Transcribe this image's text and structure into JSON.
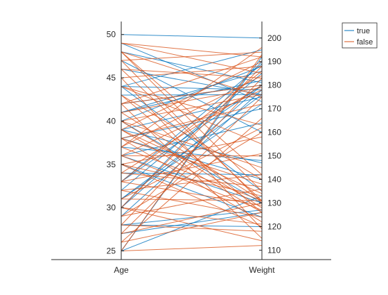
{
  "chart_data": {
    "type": "line",
    "subtype": "parallel-coordinates",
    "categories": [
      "Age",
      "Weight"
    ],
    "axes": [
      {
        "name": "Age",
        "range": [
          24,
          51.5
        ],
        "ticks": [
          25,
          30,
          35,
          40,
          45,
          50
        ],
        "side": "left"
      },
      {
        "name": "Weight",
        "range": [
          106,
          207
        ],
        "ticks": [
          110,
          120,
          130,
          140,
          150,
          160,
          170,
          180,
          190,
          200
        ],
        "side": "right"
      }
    ],
    "legend": {
      "position": "top-right",
      "entries": [
        "true",
        "false"
      ]
    },
    "colors": {
      "true": "#0072bd",
      "false": "#d95319"
    },
    "grid": false,
    "series": [
      {
        "name": "true",
        "lines": [
          [
            50,
            200
          ],
          [
            49,
            173
          ],
          [
            48,
            181
          ],
          [
            44,
            178
          ],
          [
            44,
            135
          ],
          [
            43,
            176
          ],
          [
            42,
            180
          ],
          [
            41,
            182
          ],
          [
            40,
            130
          ],
          [
            39,
            147
          ],
          [
            39,
            175
          ],
          [
            38,
            170
          ],
          [
            37,
            148
          ],
          [
            36,
            130
          ],
          [
            33,
            180
          ],
          [
            33,
            189
          ],
          [
            32,
            185
          ],
          [
            31,
            172
          ],
          [
            31,
            176
          ],
          [
            30,
            190
          ],
          [
            29,
            178
          ],
          [
            28,
            127
          ],
          [
            28,
            120
          ],
          [
            27,
            126
          ],
          [
            25,
            133
          ],
          [
            25,
            192
          ],
          [
            35,
            124
          ],
          [
            38,
            140
          ],
          [
            40,
            188
          ],
          [
            44,
            195
          ],
          [
            46,
            176
          ],
          [
            47,
            160
          ],
          [
            34,
            142
          ],
          [
            36,
            164
          ],
          [
            41,
            186
          ],
          [
            30,
            180
          ]
        ]
      },
      {
        "name": "false",
        "lines": [
          [
            49,
            192
          ],
          [
            49,
            185
          ],
          [
            48,
            175
          ],
          [
            48,
            142
          ],
          [
            48,
            135
          ],
          [
            47,
            130
          ],
          [
            47,
            194
          ],
          [
            46,
            183
          ],
          [
            45,
            188
          ],
          [
            45,
            119
          ],
          [
            44,
            163
          ],
          [
            43,
            140
          ],
          [
            43,
            126
          ],
          [
            42,
            180
          ],
          [
            42,
            115
          ],
          [
            41,
            179
          ],
          [
            41,
            131
          ],
          [
            40,
            176
          ],
          [
            40,
            128
          ],
          [
            39,
            190
          ],
          [
            39,
            134
          ],
          [
            39,
            126
          ],
          [
            38,
            172
          ],
          [
            38,
            138
          ],
          [
            38,
            122
          ],
          [
            37,
            184
          ],
          [
            37,
            131
          ],
          [
            36,
            178
          ],
          [
            36,
            150
          ],
          [
            36,
            127
          ],
          [
            35,
            158
          ],
          [
            35,
            133
          ],
          [
            35,
            120
          ],
          [
            34,
            180
          ],
          [
            34,
            137
          ],
          [
            33,
            186
          ],
          [
            33,
            129
          ],
          [
            32,
            142
          ],
          [
            32,
            124
          ],
          [
            31,
            162
          ],
          [
            31,
            131
          ],
          [
            30,
            188
          ],
          [
            30,
            121
          ],
          [
            29,
            160
          ],
          [
            29,
            136
          ],
          [
            28,
            183
          ],
          [
            28,
            118
          ],
          [
            27,
            175
          ],
          [
            27,
            130
          ],
          [
            26,
            166
          ],
          [
            25,
            112
          ],
          [
            25,
            193
          ],
          [
            26,
            126
          ],
          [
            44,
            155
          ],
          [
            46,
            131
          ],
          [
            37,
            196
          ],
          [
            33,
            151
          ],
          [
            30,
            114
          ],
          [
            42,
            192
          ],
          [
            40,
            145
          ]
        ]
      }
    ]
  }
}
